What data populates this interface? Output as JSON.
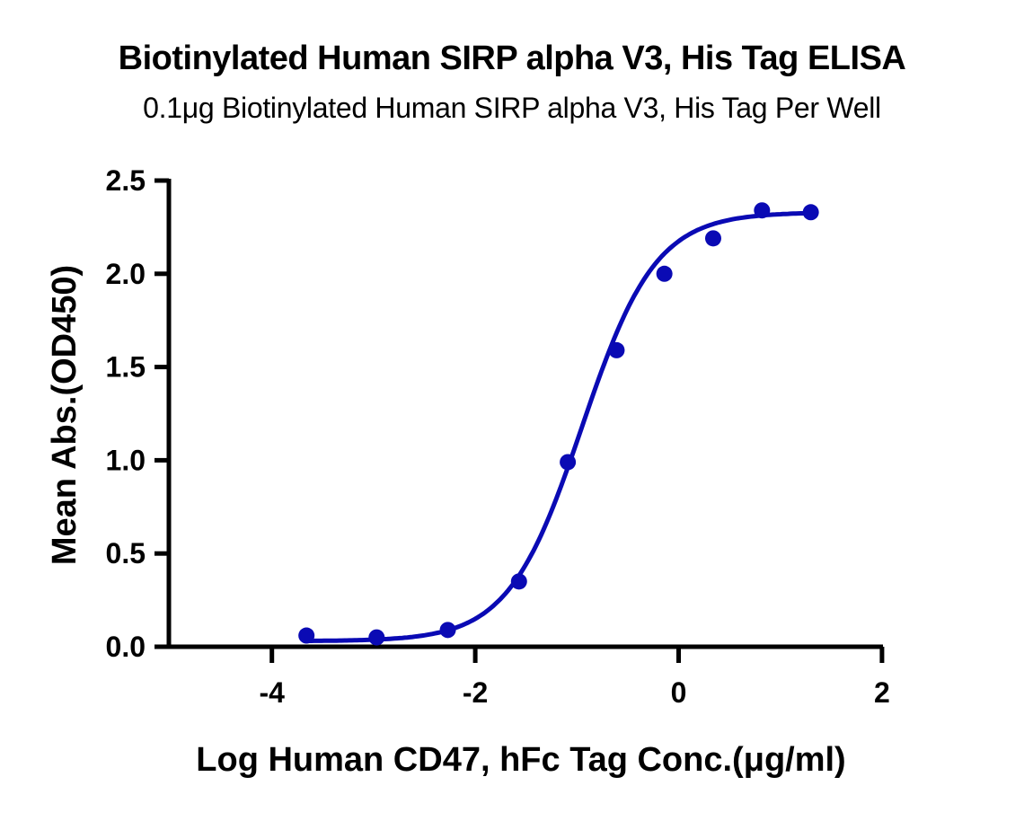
{
  "title": "Biotinylated Human SIRP alpha V3, His Tag ELISA",
  "subtitle": "0.1μg Biotinylated Human SIRP alpha V3, His Tag Per Well",
  "chart_data": {
    "type": "scatter",
    "title": "Biotinylated Human SIRP alpha V3, His Tag ELISA",
    "subtitle": "0.1μg Biotinylated Human SIRP alpha V3, His Tag Per Well",
    "xlabel": "Log Human CD47, hFc Tag Conc.(μg/ml)",
    "ylabel": "Mean Abs.(OD450)",
    "xlim": [
      -5.2,
      2
    ],
    "ylim": [
      0,
      2.5
    ],
    "xticks": [
      -4,
      -2,
      0,
      2
    ],
    "xtick_labels": [
      "-4",
      "-2",
      "0",
      "2"
    ],
    "yticks": [
      0,
      0.5,
      1.0,
      1.5,
      2.0,
      2.5
    ],
    "ytick_labels": [
      "0.0",
      "0.5",
      "1.0",
      "1.5",
      "2.0",
      "2.5"
    ],
    "grid": false,
    "legend": null,
    "series": [
      {
        "name": "Mean Abs.(OD450)",
        "color": "#0a0ab4",
        "marker": "circle",
        "fit": "4PL sigmoidal curve",
        "x": [
          -3.66,
          -2.97,
          -2.27,
          -1.57,
          -1.09,
          -0.61,
          -0.14,
          0.34,
          0.82,
          1.3
        ],
        "y": [
          0.06,
          0.05,
          0.09,
          0.35,
          0.99,
          1.59,
          2.0,
          2.19,
          2.34,
          2.33
        ]
      }
    ],
    "fit_params": {
      "bottom": 0.03,
      "top": 2.33,
      "logEC50": -0.95,
      "hill": 1.2
    }
  }
}
